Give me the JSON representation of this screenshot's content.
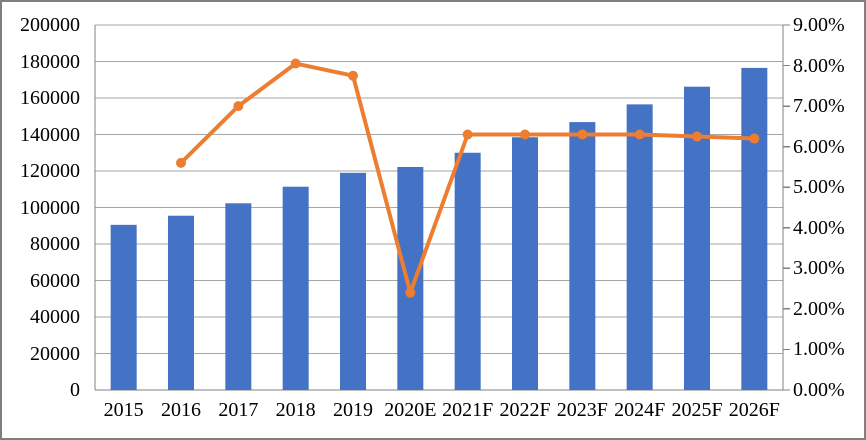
{
  "chart_data": {
    "type": "bar+line",
    "title": "",
    "legend": {
      "visible": false
    },
    "categories": [
      "2015",
      "2016",
      "2017",
      "2018",
      "2019",
      "2020E",
      "2021F",
      "2022F",
      "2023F",
      "2024F",
      "2025F",
      "2026F"
    ],
    "series": [
      {
        "name": "bar-series",
        "chart_type": "bar",
        "axis": "left",
        "color": "#4472C4",
        "values": [
          90500,
          95500,
          102300,
          111400,
          119000,
          122200,
          130000,
          138500,
          146800,
          156500,
          166200,
          176500
        ]
      },
      {
        "name": "line-series",
        "chart_type": "line",
        "axis": "right",
        "color": "#ED7D31",
        "values": [
          null,
          5.6,
          7.0,
          8.05,
          7.75,
          2.4,
          6.3,
          6.3,
          6.3,
          6.3,
          6.25,
          6.2
        ]
      }
    ],
    "left_axis": {
      "min": 0,
      "max": 200000,
      "step": 20000,
      "labels": [
        "200000",
        "180000",
        "160000",
        "140000",
        "120000",
        "100000",
        "80000",
        "60000",
        "40000",
        "20000",
        "0"
      ]
    },
    "right_axis": {
      "min": 0,
      "max": 9,
      "step": 1,
      "labels": [
        "9.00%",
        "8.00%",
        "7.00%",
        "6.00%",
        "5.00%",
        "4.00%",
        "3.00%",
        "2.00%",
        "1.00%",
        "0.00%"
      ]
    },
    "grid": {
      "horizontal": true,
      "vertical": false
    },
    "colors": {
      "bar": "#4472C4",
      "line": "#ED7D31",
      "gridline": "#A6A6A6",
      "axis_line": "#808080",
      "text": "#000000",
      "background": "#FFFFFF",
      "border": "#7F7F7F"
    }
  }
}
